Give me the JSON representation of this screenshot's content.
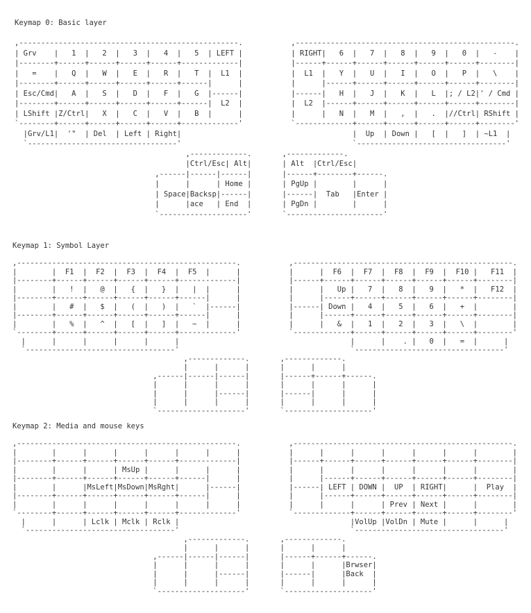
{
  "sections": [
    {
      "title": "Keymap 0: Basic layer",
      "lines": [
        "",
        ",--------------------------------------------------.           ,--------------------------------------------------.",
        "| Grv    |   1  |   2  |   3  |   4  |   5  | LEFT |           | RIGHT|   6  |   7  |   8  |   9  |   0  |   -    |",
        "|--------+------+------+------+------+-------------|           |------+------+------+------+------+------+--------|",
        "|   =    |   Q  |   W  |   E  |   R  |   T  |  L1  |           |  L1  |   Y  |   U  |   I  |   O  |   P  |   \\    |",
        "|--------+------+------+------+------+------|      |           |      |------+------+------+------+------+--------|",
        "| Esc/Cmd|   A  |   S  |   D  |   F  |   G  |------|           |------|   H  |   J  |   K  |   L  |; / L2|' / Cmd |",
        "|--------+------+------+------+------+------|  L2  |           |  L2  |------+------+------+------+------+--------|",
        "| LShift |Z/Ctrl|   X  |   C  |   V  |   B  |      |           |      |   N  |   M  |   ,  |   .  |//Ctrl| RShift |",
        "`--------+------+------+------+------+-------------'           `-------------+------+------+------+------+--------'",
        "  |Grv/L1|  '\"  | Del  | Left | Right|                                       |  Up  | Down |   [  |   ]  | ~L1  |",
        "  `----------------------------------'                                       `----------------------------------'",
        "                                       ,-------------.       ,-------------.",
        "                                       |Ctrl/Esc| Alt|       | Alt  |Ctrl/Esc|",
        "                                ,------|------|------|       |------+--------+------.",
        "                                |      |      | Home |       | PgUp |        |      |",
        "                                | Space|Backsp|------|       |------|  Tab   |Enter |",
        "                                |      |ace   | End  |       | PgDn |        |      |",
        "                                `--------------------'       `----------------------'"
      ]
    },
    {
      "title": "Keymap 1: Symbol Layer",
      "lines": [
        "",
        ",--------------------------------------------------.           ,--------------------------------------------------.",
        "|        |  F1  |  F2  |  F3  |  F4  |  F5  |      |           |      |  F6  |  F7  |  F8  |  F9  |  F10 |   F11  |",
        "|--------+------+------+------+------+-------------|           |------+------+------+------+------+------+--------|",
        "|        |   !  |   @  |   {  |   }  |   |  |      |           |      |   Up |   7  |   8  |   9  |   *  |   F12  |",
        "|--------+------+------+------+------+------|      |           |      |------+------+------+------+------+--------|",
        "|        |   #  |   $  |   (  |   )  |   `  |------|           |------| Down |   4  |   5  |   6  |   +  |        |",
        "|--------+------+------+------+------+------|      |           |      |------+------+------+------+------+--------|",
        "|        |   %  |   ^  |   [  |   ]  |   ~  |      |           |      |   &  |   1  |   2  |   3  |   \\  |        |",
        "`--------+------+------+------+------+-------------'           `-------------+------+------+------+------+--------'",
        "  |      |      |      |      |      |                                       |      |    . |   0  |   =  |      |",
        "  `----------------------------------'                                       `----------------------------------'",
        "                                       ,-------------.       ,-------------.",
        "                                       |      |      |       |      |      |",
        "                                ,------|------|------|       |------+------+------.",
        "                                |      |      |      |       |      |      |      |",
        "                                |      |      |------|       |------|      |      |",
        "                                |      |      |      |       |      |      |      |",
        "                                `--------------------'       `--------------------'"
      ]
    },
    {
      "title": "Keymap 2: Media and mouse keys",
      "lines": [
        "",
        ",--------------------------------------------------.           ,--------------------------------------------------.",
        "|        |      |      |      |      |      |      |           |      |      |      |      |      |      |        |",
        "|--------+------+------+------+------+-------------|           |------+------+------+------+------+------+--------|",
        "|        |      |      | MsUp |      |      |      |           |      |      |      |      |      |      |        |",
        "|--------+------+------+------+------+------|      |           |      |------+------+------+------+------+--------|",
        "|        |      |MsLeft|MsDown|MsRght|      |------|           |------| LEFT | DOWN |  UP  | RIGHT|      |  Play  |",
        "|--------+------+------+------+------+------|      |           |      |------+------+------+------+------+--------|",
        "|        |      |      |      |      |      |      |           |      |      |      | Prev | Next |      |        |",
        "`--------+------+------+------+------+-------------'           `-------------+------+------+------+------+--------'",
        "  |      |      | Lclk | Mclk | Rclk |                                       |VolUp |VolDn | Mute |      |      |",
        "  `----------------------------------'                                       `----------------------------------'",
        "                                       ,-------------.       ,-------------.",
        "                                       |      |      |       |      |      |",
        "                                ,------|------|------|       |------+------+------.",
        "                                |      |      |      |       |      |      |Brwser|",
        "                                |      |      |------|       |------|      |Back  |",
        "                                |      |      |      |       |      |      |      |",
        "                                `--------------------'       `--------------------'"
      ]
    }
  ]
}
